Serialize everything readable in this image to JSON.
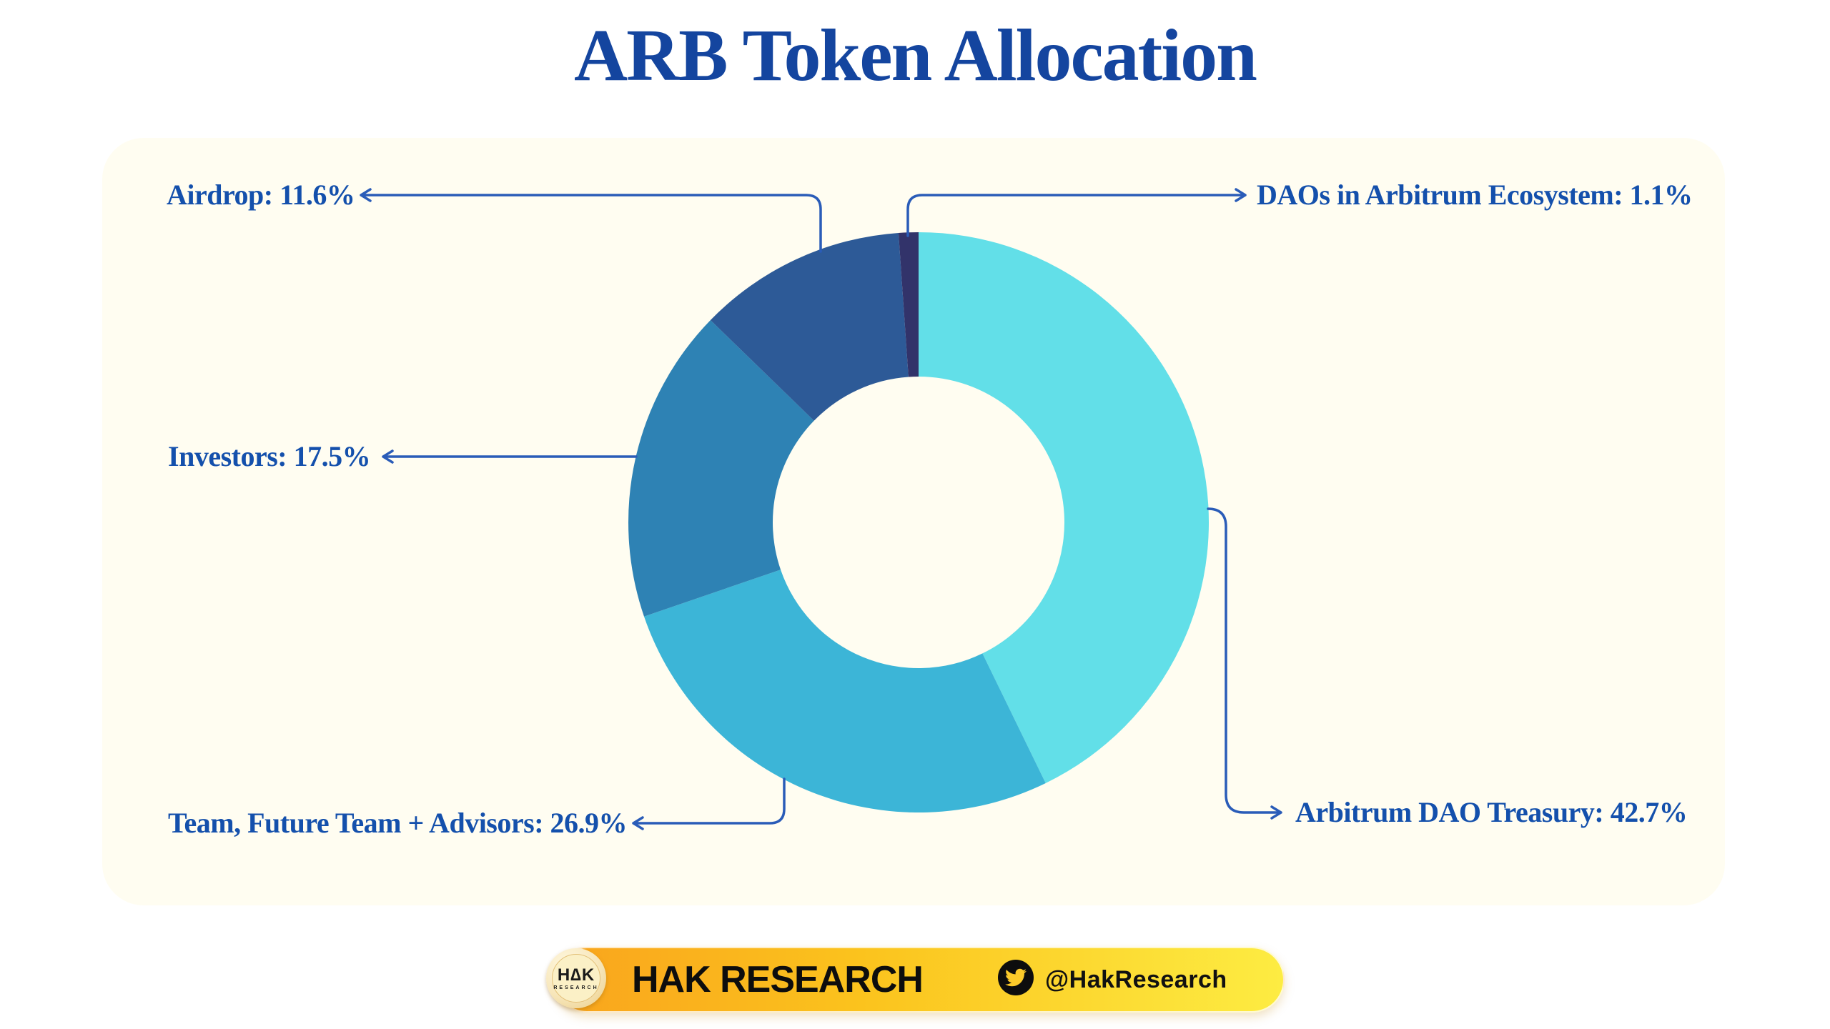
{
  "title": "ARB Token Allocation",
  "chart_data": {
    "type": "pie",
    "variant": "donut",
    "title": "ARB Token Allocation",
    "unit": "%",
    "start_angle": "12 o'clock, clockwise",
    "inner_radius_ratio": 0.5,
    "segments": [
      {
        "label": "Arbitrum DAO Treasury",
        "value": 42.7,
        "color": "#62dfe8"
      },
      {
        "label": "Team, Future Team + Advisors",
        "value": 26.9,
        "color": "#3cb5d7"
      },
      {
        "label": "Investors",
        "value": 17.5,
        "color": "#2e82b4"
      },
      {
        "label": "Airdrop",
        "value": 11.6,
        "color": "#2d5a97"
      },
      {
        "label": "DAOs in Arbitrum Ecosystem",
        "value": 1.1,
        "color": "#32336a"
      }
    ]
  },
  "annotations": [
    {
      "id": "airdrop",
      "text": "Airdrop: 11.6%"
    },
    {
      "id": "daos",
      "text": "DAOs in Arbitrum Ecosystem: 1.1%"
    },
    {
      "id": "investors",
      "text": "Investors: 17.5%"
    },
    {
      "id": "team",
      "text": "Team, Future Team + Advisors: 26.9%"
    },
    {
      "id": "treasury",
      "text": "Arbitrum DAO Treasury: 42.7%"
    }
  ],
  "footer": {
    "logo_top": "H∆K",
    "logo_sub": "RESEARCH",
    "brand": "HAK RESEARCH",
    "twitter_handle": "@HakResearch",
    "twitter_icon": "twitter-bird-icon"
  },
  "colors": {
    "title_text": "#14459f",
    "label_text": "#1450ac",
    "leader_line": "#2a5cb8",
    "background_light": "#fceaa4",
    "background_gold": "#fcc72e",
    "panel_overlay": "rgba(255,250,226,0.48)",
    "pill_gradient": [
      "#f9a41d",
      "#fbc31d",
      "#fdec42"
    ]
  }
}
